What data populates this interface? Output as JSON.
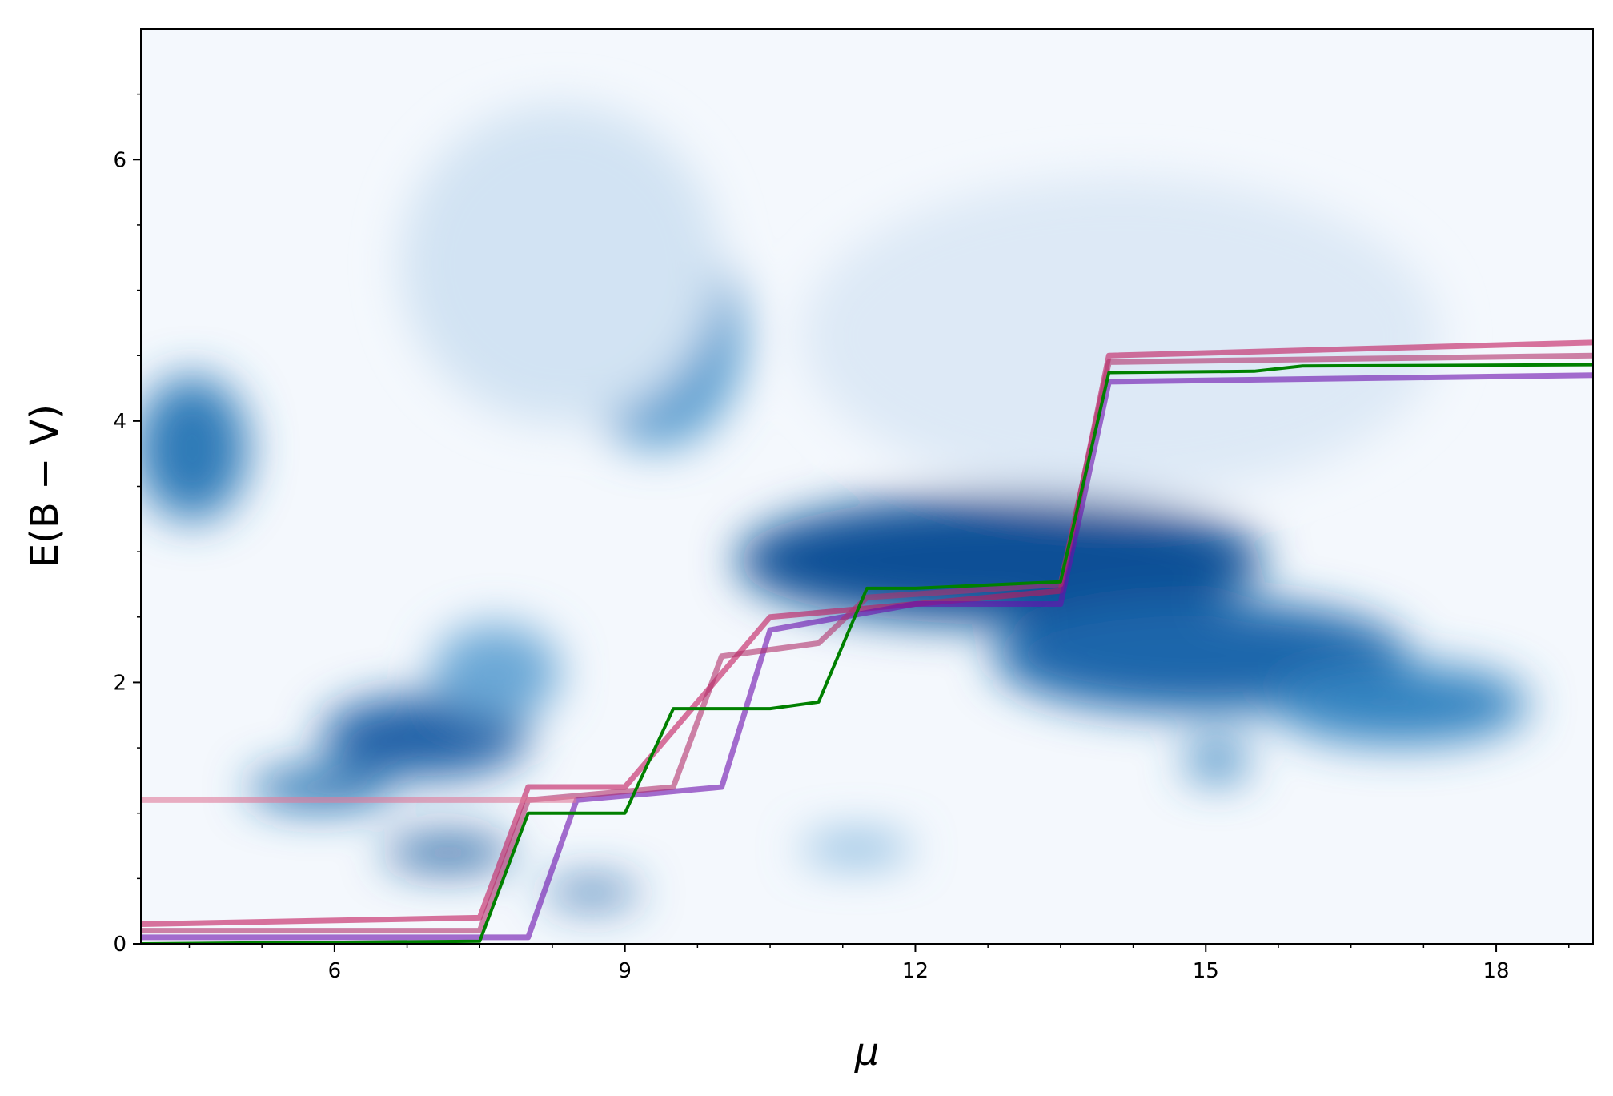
{
  "chart_data": {
    "type": "line",
    "xlabel": "μ",
    "ylabel": "E(B − V)",
    "xlim": [
      4,
      19
    ],
    "ylim": [
      0,
      7
    ],
    "xticks": [
      6,
      9,
      12,
      15,
      18
    ],
    "yticks": [
      0,
      2,
      4,
      6
    ],
    "xminorticks": [
      4.5,
      5.25,
      6.75,
      7.5,
      8.25,
      9.75,
      10.5,
      11.25,
      12.75,
      13.5,
      14.25,
      15.75,
      16.5,
      17.25,
      18.75
    ],
    "yminorticks": [
      0.5,
      1,
      1.5,
      2.5,
      3,
      3.5,
      4.5,
      5,
      5.5,
      6.5
    ],
    "series": [
      {
        "color": "#c2185b",
        "x": [
          4,
          7.5,
          8,
          9,
          10.5,
          12,
          13.5,
          14,
          19
        ],
        "values": [
          0.15,
          0.2,
          1.2,
          1.2,
          2.5,
          2.6,
          2.7,
          4.5,
          4.6
        ]
      },
      {
        "color": "#6a0dad",
        "x": [
          4,
          8,
          8.5,
          10,
          10.5,
          12,
          13.5,
          14,
          19
        ],
        "values": [
          0.05,
          0.05,
          1.1,
          1.2,
          2.4,
          2.6,
          2.6,
          4.3,
          4.35
        ]
      },
      {
        "color": "#b0306a",
        "x": [
          4,
          7.5,
          8,
          9.5,
          10,
          11,
          11.5,
          13.5,
          14,
          19
        ],
        "values": [
          0.1,
          0.1,
          1.1,
          1.2,
          2.2,
          2.3,
          2.65,
          2.75,
          4.45,
          4.5
        ]
      },
      {
        "color": "#e07a9a",
        "x": [
          4,
          8,
          8.5
        ],
        "values": [
          1.1,
          1.1,
          1.1
        ]
      },
      {
        "color": "#008000",
        "x": [
          4,
          7.5,
          8,
          9,
          9.5,
          10.5,
          11,
          11.5,
          12,
          13.5,
          14,
          15.5,
          16,
          19
        ],
        "values": [
          0,
          0.02,
          1.0,
          1.0,
          1.8,
          1.8,
          1.85,
          2.72,
          2.72,
          2.77,
          4.37,
          4.38,
          4.42,
          4.43
        ]
      }
    ]
  }
}
